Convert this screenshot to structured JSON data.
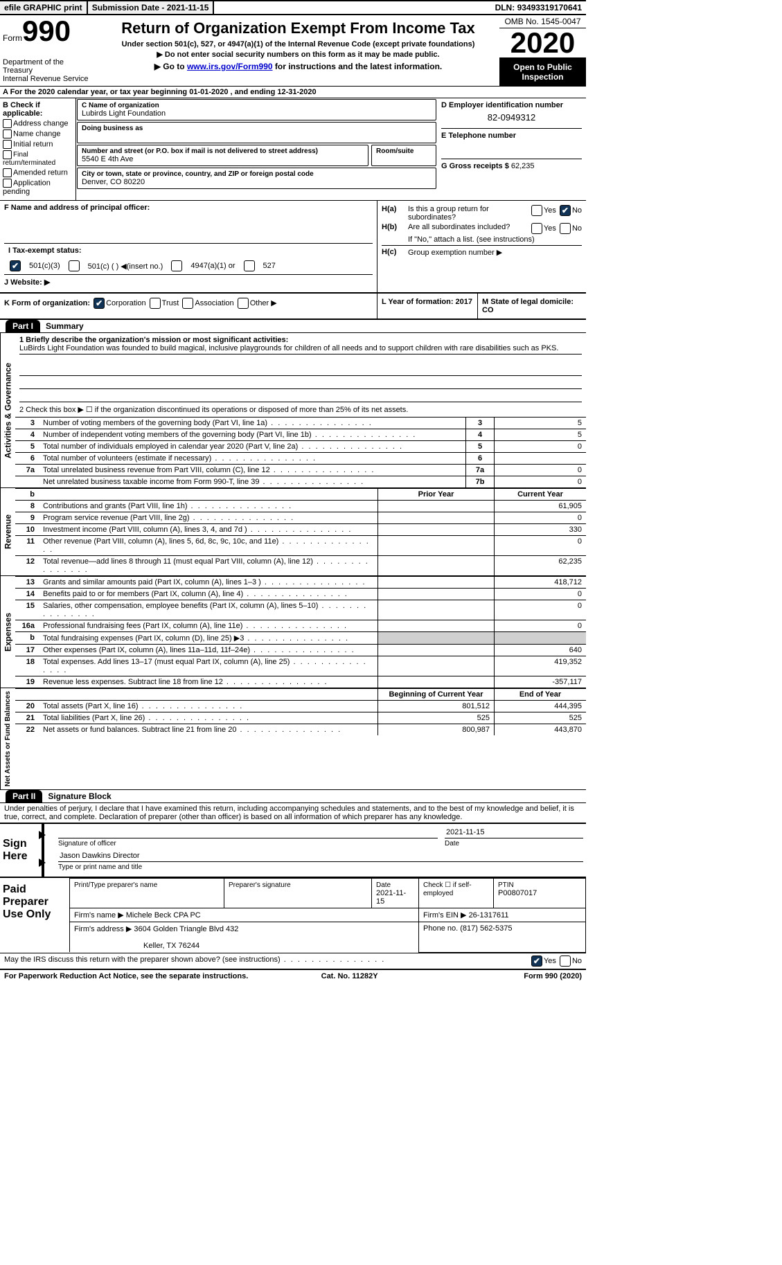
{
  "topbar": {
    "efile": "efile GRAPHIC print",
    "sub_label": "Submission Date - ",
    "sub_date": "2021-11-15",
    "dln_label": "DLN: ",
    "dln": "93493319170641"
  },
  "header": {
    "form_word": "Form",
    "form_num": "990",
    "dept": "Department of the Treasury\nInternal Revenue Service",
    "title": "Return of Organization Exempt From Income Tax",
    "sub1": "Under section 501(c), 527, or 4947(a)(1) of the Internal Revenue Code (except private foundations)",
    "sub2": "▶ Do not enter social security numbers on this form as it may be made public.",
    "sub3_a": "▶ Go to ",
    "sub3_link": "www.irs.gov/Form990",
    "sub3_b": " for instructions and the latest information.",
    "omb": "OMB No. 1545-0047",
    "year": "2020",
    "open": "Open to Public Inspection"
  },
  "rowA": {
    "text": "A For the 2020 calendar year, or tax year beginning 01-01-2020    , and ending 12-31-2020"
  },
  "colB": {
    "lbl": "B Check if applicable:",
    "items": [
      "Address change",
      "Name change",
      "Initial return",
      "Final return/terminated",
      "Amended return",
      "Application pending"
    ]
  },
  "colC": {
    "name_lbl": "C Name of organization",
    "name": "Lubirds Light Foundation",
    "dba_lbl": "Doing business as",
    "dba": "",
    "addr_lbl": "Number and street (or P.O. box if mail is not delivered to street address)",
    "room_lbl": "Room/suite",
    "addr": "5540 E 4th Ave",
    "city_lbl": "City or town, state or province, country, and ZIP or foreign postal code",
    "city": "Denver, CO  80220"
  },
  "colD": {
    "ein_lbl": "D Employer identification number",
    "ein": "82-0949312",
    "tel_lbl": "E Telephone number",
    "tel": "",
    "gross_lbl": "G Gross receipts $ ",
    "gross": "62,235"
  },
  "rowF": {
    "lbl": "F  Name and address of principal officer:",
    "val": ""
  },
  "rowH": {
    "ha_k": "H(a)",
    "ha": "Is this a group return for subordinates?",
    "hb_k": "H(b)",
    "hb": "Are all subordinates included?",
    "hb_note": "If \"No,\" attach a list. (see instructions)",
    "hc_k": "H(c)",
    "hc": "Group exemption number ▶"
  },
  "rowI": {
    "lbl": "I    Tax-exempt status:",
    "opts": [
      "501(c)(3)",
      "501(c) (  ) ◀(insert no.)",
      "4947(a)(1) or",
      "527"
    ]
  },
  "rowJ": {
    "lbl": "J   Website: ▶",
    "val": ""
  },
  "rowK": {
    "lbl": "K Form of organization:",
    "opts": [
      "Corporation",
      "Trust",
      "Association",
      "Other ▶"
    ]
  },
  "rowL": {
    "text": "L Year of formation: 2017"
  },
  "rowM": {
    "text": "M State of legal domicile: CO"
  },
  "part1": {
    "tag": "Part I",
    "title": "Summary"
  },
  "mission": {
    "line1_lbl": "1  Briefly describe the organization's mission or most significant activities:",
    "line1": "LuBirds Light Foundation was founded to build magical, inclusive playgrounds for children of all needs and to support children with rare disabilities such as PKS.",
    "line2": "2   Check this box ▶ ☐  if the organization discontinued its operations or disposed of more than 25% of its net assets."
  },
  "vert_labels": {
    "gov": "Activities & Governance",
    "rev": "Revenue",
    "exp": "Expenses",
    "net": "Net Assets or Fund Balances"
  },
  "gov_lines": [
    {
      "n": "3",
      "t": "Number of voting members of the governing body (Part VI, line 1a)",
      "k": "3",
      "v": "5"
    },
    {
      "n": "4",
      "t": "Number of independent voting members of the governing body (Part VI, line 1b)",
      "k": "4",
      "v": "5"
    },
    {
      "n": "5",
      "t": "Total number of individuals employed in calendar year 2020 (Part V, line 2a)",
      "k": "5",
      "v": "0"
    },
    {
      "n": "6",
      "t": "Total number of volunteers (estimate if necessary)",
      "k": "6",
      "v": ""
    },
    {
      "n": "7a",
      "t": "Total unrelated business revenue from Part VIII, column (C), line 12",
      "k": "7a",
      "v": "0"
    },
    {
      "n": "",
      "t": "Net unrelated business taxable income from Form 990-T, line 39",
      "k": "7b",
      "v": "0"
    }
  ],
  "col_hdrs": {
    "b": "b",
    "prior": "Prior Year",
    "curr": "Current Year",
    "beg": "Beginning of Current Year",
    "end": "End of Year"
  },
  "rev_lines": [
    {
      "n": "8",
      "t": "Contributions and grants (Part VIII, line 1h)",
      "p": "",
      "c": "61,905"
    },
    {
      "n": "9",
      "t": "Program service revenue (Part VIII, line 2g)",
      "p": "",
      "c": "0"
    },
    {
      "n": "10",
      "t": "Investment income (Part VIII, column (A), lines 3, 4, and 7d )",
      "p": "",
      "c": "330"
    },
    {
      "n": "11",
      "t": "Other revenue (Part VIII, column (A), lines 5, 6d, 8c, 9c, 10c, and 11e)",
      "p": "",
      "c": "0"
    },
    {
      "n": "12",
      "t": "Total revenue—add lines 8 through 11 (must equal Part VIII, column (A), line 12)",
      "p": "",
      "c": "62,235"
    }
  ],
  "exp_lines": [
    {
      "n": "13",
      "t": "Grants and similar amounts paid (Part IX, column (A), lines 1–3 )",
      "p": "",
      "c": "418,712"
    },
    {
      "n": "14",
      "t": "Benefits paid to or for members (Part IX, column (A), line 4)",
      "p": "",
      "c": "0"
    },
    {
      "n": "15",
      "t": "Salaries, other compensation, employee benefits (Part IX, column (A), lines 5–10)",
      "p": "",
      "c": "0"
    },
    {
      "n": "16a",
      "t": "Professional fundraising fees (Part IX, column (A), line 11e)",
      "p": "",
      "c": "0"
    },
    {
      "n": "b",
      "t": "Total fundraising expenses (Part IX, column (D), line 25) ▶3",
      "p": "gray",
      "c": "gray"
    },
    {
      "n": "17",
      "t": "Other expenses (Part IX, column (A), lines 11a–11d, 11f–24e)",
      "p": "",
      "c": "640"
    },
    {
      "n": "18",
      "t": "Total expenses. Add lines 13–17 (must equal Part IX, column (A), line 25)",
      "p": "",
      "c": "419,352"
    },
    {
      "n": "19",
      "t": "Revenue less expenses. Subtract line 18 from line 12",
      "p": "",
      "c": "-357,117"
    }
  ],
  "net_lines": [
    {
      "n": "20",
      "t": "Total assets (Part X, line 16)",
      "p": "801,512",
      "c": "444,395"
    },
    {
      "n": "21",
      "t": "Total liabilities (Part X, line 26)",
      "p": "525",
      "c": "525"
    },
    {
      "n": "22",
      "t": "Net assets or fund balances. Subtract line 21 from line 20",
      "p": "800,987",
      "c": "443,870"
    }
  ],
  "part2": {
    "tag": "Part II",
    "title": "Signature Block"
  },
  "penalties": "Under penalties of perjury, I declare that I have examined this return, including accompanying schedules and statements, and to the best of my knowledge and belief, it is true, correct, and complete. Declaration of preparer (other than officer) is based on all information of which preparer has any knowledge.",
  "sign": {
    "lbl": "Sign Here",
    "sig_lbl": "Signature of officer",
    "date_lbl": "Date",
    "date": "2021-11-15",
    "name": "Jason Dawkins  Director",
    "name_lbl": "Type or print name and title"
  },
  "prep": {
    "lbl": "Paid Preparer Use Only",
    "pt_lbl": "Print/Type preparer's name",
    "pt": "",
    "sig_lbl": "Preparer's signature",
    "date_lbl": "Date",
    "date": "2021-11-15",
    "self_lbl": "Check ☐ if self-employed",
    "ptin_lbl": "PTIN",
    "ptin": "P00807017",
    "firm_lbl": "Firm's name     ▶ ",
    "firm": "Michele Beck CPA PC",
    "firm_ein_lbl": "Firm's EIN ▶ ",
    "firm_ein": "26-1317611",
    "addr_lbl": "Firm's address ▶ ",
    "addr": "3604 Golden Triangle Blvd 432",
    "addr2": "Keller, TX  76244",
    "phone_lbl": "Phone no. ",
    "phone": "(817) 562-5375"
  },
  "discuss": {
    "q": "May the IRS discuss this return with the preparer shown above? (see instructions)",
    "yes": "Yes",
    "no": "No"
  },
  "footer": {
    "l": "For Paperwork Reduction Act Notice, see the separate instructions.",
    "m": "Cat. No. 11282Y",
    "r": "Form 990 (2020)"
  }
}
